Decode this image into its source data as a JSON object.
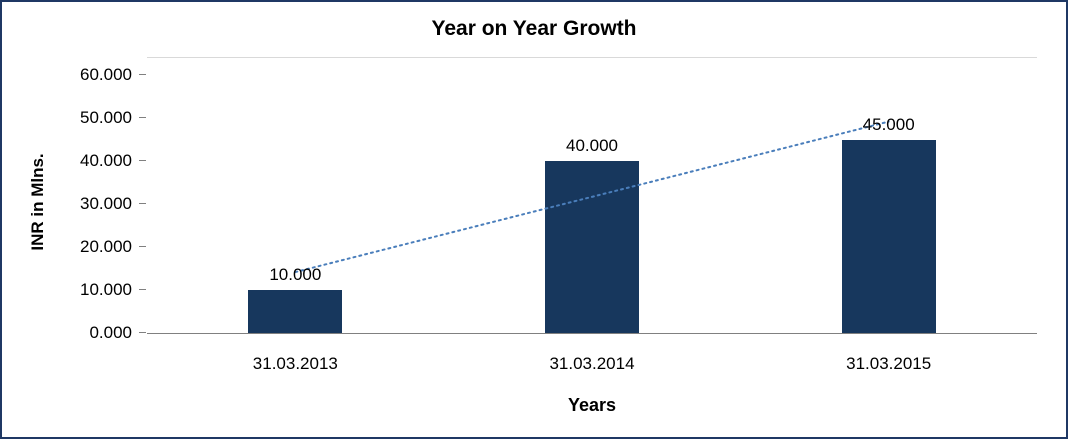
{
  "chart_data": {
    "type": "bar",
    "title": "Year on Year Growth",
    "xlabel": "Years",
    "ylabel": "INR in Mlns.",
    "categories": [
      "31.03.2013",
      "31.03.2014",
      "31.03.2015"
    ],
    "values": [
      10,
      40,
      45
    ],
    "data_labels": [
      "10.000",
      "40.000",
      "45.000"
    ],
    "y_ticks": [
      "60.000",
      "50.000",
      "40.000",
      "30.000",
      "20.000",
      "10.000",
      "0.000"
    ],
    "ylim": [
      0,
      60
    ],
    "grid": "off",
    "legend": "none",
    "trendline": {
      "type": "linear",
      "style": "dotted"
    },
    "colors": {
      "bar": "#17375D",
      "trendline": "#4A7EBB",
      "frame_border": "#1F3864",
      "axis_line": "#808080",
      "gridline": "#D9D9D9",
      "text": "#000000"
    }
  }
}
